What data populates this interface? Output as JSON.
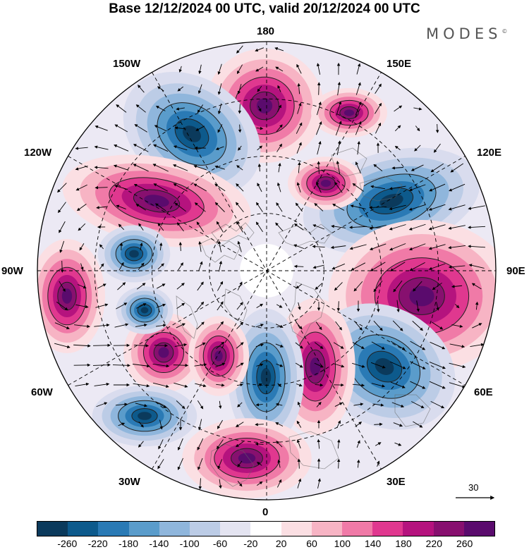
{
  "title": "Base 12/12/2024 00 UTC, valid 20/12/2024 00 UTC",
  "brand": "MODES",
  "brand_mark": "©",
  "longitude_labels": {
    "n180": "180",
    "w150": "150W",
    "e150": "150E",
    "w120": "120W",
    "e120": "120E",
    "w90": "90W",
    "e90": "90E",
    "w60": "60W",
    "e60": "60E",
    "w30": "30W",
    "e30": "30E",
    "s0": "0"
  },
  "reference_vector": "30",
  "colorbar": {
    "colors": [
      "#0b3a5c",
      "#0d5a8c",
      "#2a7ab5",
      "#5a9ccb",
      "#8fb6dc",
      "#bccce6",
      "#e4e4f1",
      "#ffffff",
      "#fbdfe3",
      "#f7b4c4",
      "#f07aa7",
      "#e0388f",
      "#b5137e",
      "#87106f",
      "#5a0b6d"
    ],
    "ticks": [
      "-260",
      "-220",
      "-180",
      "-140",
      "-100",
      "-60",
      "-20",
      "20",
      "60",
      "100",
      "140",
      "180",
      "220",
      "260"
    ]
  }
}
